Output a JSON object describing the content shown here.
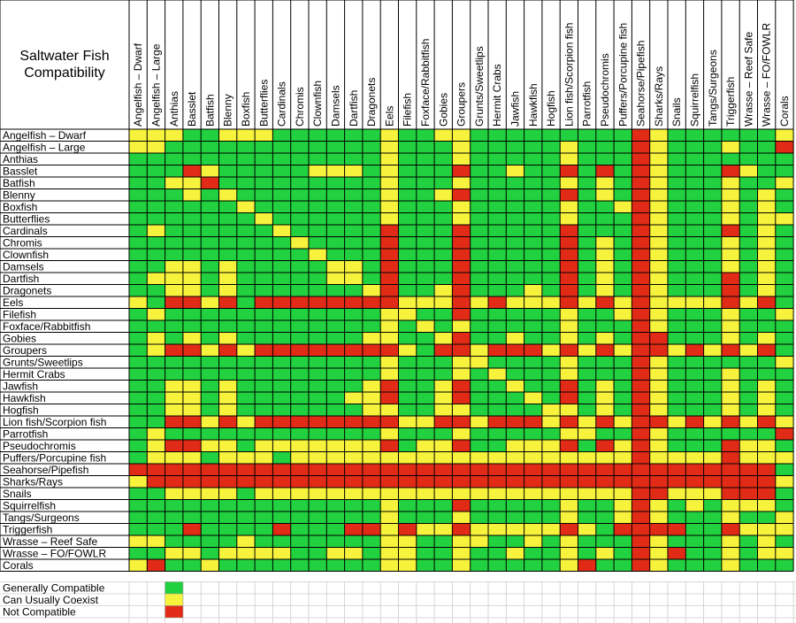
{
  "chart_data": {
    "type": "heatmap",
    "title": "Saltwater Fish\nCompatibility",
    "columns": [
      "Angelfish – Dwarf",
      "Angelfish – Large",
      "Anthias",
      "Basslet",
      "Batfish",
      "Blenny",
      "Boxfish",
      "Butterflies",
      "Cardinals",
      "Chromis",
      "Clownfish",
      "Damsels",
      "Dartfish",
      "Dragonets",
      "Eels",
      "Filefish",
      "Foxface/Rabbitfish",
      "Gobies",
      "Groupers",
      "Grunts/Sweetlips",
      "Hermit Crabs",
      "Jawfish",
      "Hawkfish",
      "Hogfish",
      "Lion fish/Scorpion fish",
      "Parrotfish",
      "Pseudochromis",
      "Puffers/Porcupine fish",
      "Seahorse/Pipefish",
      "Sharks/Rays",
      "Snails",
      "Squirrelfish",
      "Tangs/Surgeons",
      "Triggerfish",
      "Wrasse – Reef Safe",
      "Wrasse – FO/FOWLR",
      "Corals"
    ],
    "rows": [
      "Angelfish – Dwarf",
      "Angelfish – Large",
      "Anthias",
      "Basslet",
      "Batfish",
      "Blenny",
      "Boxfish",
      "Butterflies",
      "Cardinals",
      "Chromis",
      "Clownfish",
      "Damsels",
      "Dartfish",
      "Dragonets",
      "Eels",
      "Filefish",
      "Foxface/Rabbitfish",
      "Gobies",
      "Groupers",
      "Grunts/Sweetlips",
      "Hermit Crabs",
      "Jawfish",
      "Hawkfish",
      "Hogfish",
      "Lion fish/Scorpion fish",
      "Parrotfish",
      "Pseudochromis",
      "Puffers/Porcupine fish",
      "Seahorse/Pipefish",
      "Sharks/Rays",
      "Snails",
      "Squirrelfish",
      "Tangs/Surgeons",
      "Triggerfish",
      "Wrasse – Reef Safe",
      "Wrasse – FO/FOWLR",
      "Corals"
    ],
    "levels": [
      "G",
      "Y",
      "R"
    ],
    "matrix": [
      "YYYGGYYYGGGGGGYGGYYGGGGGGGGGRYGGGGGGY",
      "YYGGGGGGGGGGGGYGGGYGGGGGYGGGRYGGGYGGR",
      "GGGGGGGGGGGGGGYGGGYGGGGGYGGGRYGGGGGGG",
      "GGGRYGGGGGYYYGYGGGRGGYGGRGRGRYGGGRYGG",
      "GGYYRGGGGGGGGGYGGGYGGGGGYGYGRYGGGYGGY",
      "GGGYGYGGGGGGGGYGGYRGGGGGRGYGRYGGGYGYG",
      "GGGGGGYGGGGGGGYGGGYGGGGGYGGYRYGGGYGYG",
      "GGGGGGGYGGGGGGYGGGYGGGGGYGGGRYGGGYGYY",
      "GYGGGGGGYGGGGGRGGGRGGGGGRGGGRYGGGRGYG",
      "GGGGGGGGGYGGGGRGGGRGGGGGRGYGRYGGGYGYG",
      "GGGGGGGGGGYGGGRGGGRGGGGGRGYGRYGGGYGYG",
      "GGYYGYGGGGGYYGRGGGRGGGGGRGYGRYGGGYGYG",
      "GYYYGYGGGGGYYGRGGGRGGGGGRGYGRYGGGRGYG",
      "GGYYGYGGGGGGGYRGGYRGGGYGRGYGRYGGGRGYG",
      "YGRRYRGRRRRRRRRYYYRYRYYYRYRYRYYYYRYRG",
      "GYGGGGGGGGGGGGYYGGRGGGGGYGGYRYGGGYGGY",
      "GGGGGGGGGGGGGGYGYGYGGGGGYGGGRYGGGYGGG",
      "GYGYGYGGGGGGGYYGGYRGGYGGYGYGRRGGGYGYG",
      "GYRRYRYRRRRRRRRYGRRYRRRYRYRYRRYRYRYRG",
      "GGGGGGGGGGGGGGYGGGYYGGGGYGGGRYGGGGGGY",
      "GGGGGGGGGGGGGGYGGGYGYGGGYGGGRYGGGYGGG",
      "GGYYGYGGGGGGGYRGGYRGGYGGRGYGRYGGGYGYG",
      "GGYYGYGGGGGGYYRGGYRGGGYGRGYGRYGGGYGYG",
      "GGYYGYGGGGGGGYYGGYYGGGGYYGYGRYGGGYGYG",
      "GGRRYRYRRRRRRRRYYRRYRRRYRYRYRRYRYRYRY",
      "GYGGGGGGGGGGGGYGGGYGGGGGYYGGRYGGGGGGR",
      "GYRRYYGYYYYYYYRGYYRGGYYYRGRYRYGGGRYYG",
      "GYYYGYYYGYYYYYYYYYYYYYYYYYYYRYYYYRYYY",
      "RRRRRRRRRRRRRRRRRRRRRRRRRRRRRRRRRRRRG",
      "YRRRRRRRRRRRRRRRRRRRRRRRRRRRRRRRRRRRY",
      "GGYYYYGYYYYYYYYYYYYYYYYYYYYYRRYYYRRRG",
      "GGGGGGGGGGGGGGYGGGRGGGGGYGGYRYGYGYYYG",
      "GGGGGGGGGGGGGGYGGGYGGGGGYGGYRYGGGYGGY",
      "GGGRGGGGRGGGRRYRYYRYYYYYRYGRRRRGGRYYY",
      "YYGGGGYGGGGGGGYYGGYYGGYGYGGGRYGGGYGYG",
      "GGYYGYYYYGGYYGYYGGYGGYGGYGYGRYRGGYGYY",
      "YRGGYGGGGGGGGGYYGGYGGGGGYRGGRYGGGYGGG"
    ],
    "legend": [
      {
        "label": "Generally Compatible",
        "level": "G"
      },
      {
        "label": "Can Usually Coexist",
        "level": "Y"
      },
      {
        "label": "Not Compatible",
        "level": "R"
      }
    ],
    "colors": {
      "G": "#21d13f",
      "Y": "#f7f33c",
      "R": "#e22b16"
    }
  }
}
